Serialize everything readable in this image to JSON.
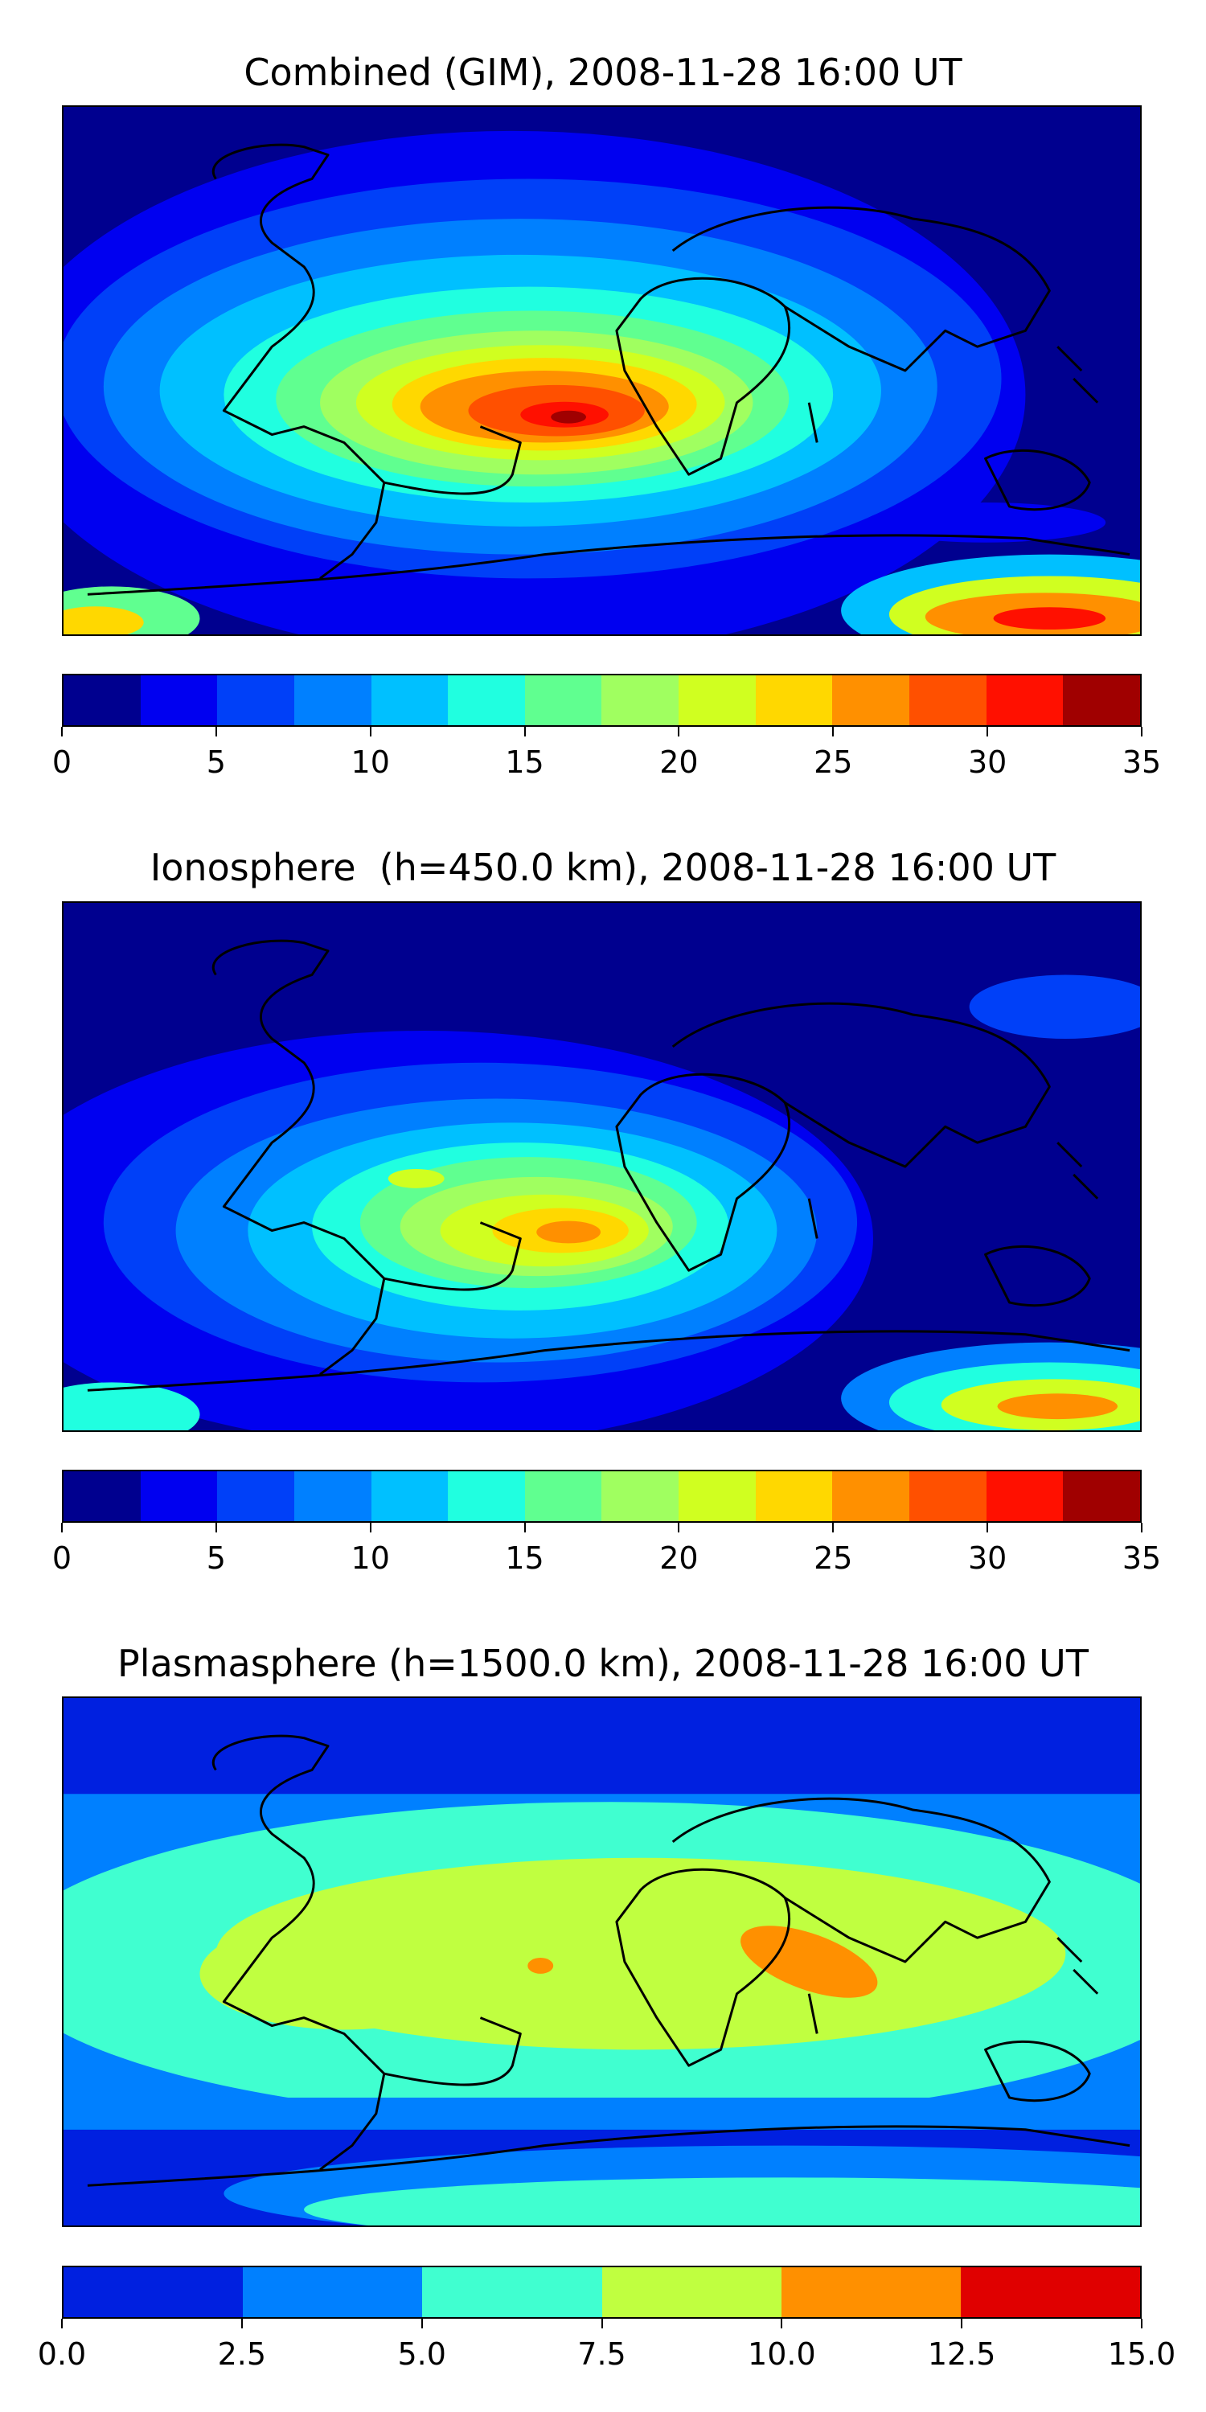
{
  "panels": [
    {
      "title": "Combined (GIM), 2008-11-28 16:00 UT",
      "colorbar": {
        "colors": [
          "#00008f",
          "#0000f0",
          "#0040f8",
          "#0080ff",
          "#00c0ff",
          "#20ffe0",
          "#60ff90",
          "#a0ff60",
          "#d0ff20",
          "#ffd800",
          "#ff9000",
          "#ff5000",
          "#ff1000",
          "#a00000"
        ],
        "ticks": [
          "0",
          "5",
          "10",
          "15",
          "20",
          "25",
          "30",
          "35"
        ],
        "range": [
          0,
          35
        ]
      }
    },
    {
      "title": "Ionosphere  (h=450.0 km), 2008-11-28 16:00 UT",
      "colorbar": {
        "colors": [
          "#00008f",
          "#0000f0",
          "#0040f8",
          "#0080ff",
          "#00c0ff",
          "#20ffe0",
          "#60ff90",
          "#a0ff60",
          "#d0ff20",
          "#ffd800",
          "#ff9000",
          "#ff5000",
          "#ff1000",
          "#a00000"
        ],
        "ticks": [
          "0",
          "5",
          "10",
          "15",
          "20",
          "25",
          "30",
          "35"
        ],
        "range": [
          0,
          35
        ]
      }
    },
    {
      "title": "Plasmasphere (h=1500.0 km), 2008-11-28 16:00 UT",
      "colorbar": {
        "colors": [
          "#0020e0",
          "#0080ff",
          "#40ffd0",
          "#c0ff40",
          "#ff9000",
          "#e00000"
        ],
        "ticks": [
          "0.0",
          "2.5",
          "5.0",
          "7.5",
          "10.0",
          "12.5",
          "15.0"
        ],
        "range": [
          0,
          15
        ]
      }
    }
  ]
}
